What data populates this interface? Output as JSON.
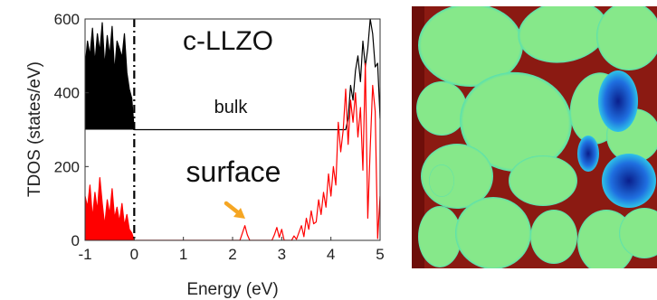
{
  "chart_data": {
    "type": "line",
    "xlabel": "Energy (eV)",
    "ylabel": "TDOS (states/eV)",
    "xlim": [
      -1,
      5
    ],
    "ylim": [
      0,
      600
    ],
    "x_ticks": [
      "-1",
      "0",
      "1",
      "2",
      "3",
      "4",
      "5"
    ],
    "y_ticks": [
      "0",
      "200",
      "400",
      "600"
    ],
    "fermi_level_x": 0,
    "annotations": {
      "material": "c-LLZO",
      "bulk_label": "bulk",
      "surface_label": "surface",
      "arrow_target_x": 2.25,
      "arrow_target_y": 40
    },
    "series": [
      {
        "name": "bulk",
        "color": "#000000",
        "baseline": 300,
        "x": [
          -1.0,
          -0.95,
          -0.9,
          -0.85,
          -0.8,
          -0.75,
          -0.7,
          -0.65,
          -0.6,
          -0.55,
          -0.5,
          -0.45,
          -0.4,
          -0.35,
          -0.3,
          -0.25,
          -0.2,
          -0.15,
          -0.1,
          -0.05,
          0.0,
          0.02,
          4.3,
          4.35,
          4.4,
          4.45,
          4.5,
          4.55,
          4.6,
          4.65,
          4.7,
          4.75,
          4.8,
          4.85,
          4.9,
          4.95,
          5.0
        ],
        "values": [
          470,
          540,
          500,
          575,
          480,
          560,
          510,
          590,
          470,
          555,
          500,
          580,
          455,
          540,
          520,
          495,
          560,
          455,
          410,
          385,
          300,
          300,
          300,
          330,
          420,
          380,
          460,
          500,
          430,
          540,
          470,
          520,
          600,
          560,
          470,
          480,
          330
        ]
      },
      {
        "name": "surface",
        "color": "#ff0000",
        "baseline": 0,
        "x": [
          -1.0,
          -0.95,
          -0.9,
          -0.85,
          -0.8,
          -0.75,
          -0.7,
          -0.65,
          -0.6,
          -0.55,
          -0.5,
          -0.45,
          -0.4,
          -0.35,
          -0.3,
          -0.25,
          -0.2,
          -0.15,
          -0.1,
          -0.05,
          0.0,
          0.05,
          2.15,
          2.2,
          2.25,
          2.3,
          2.35,
          2.8,
          2.85,
          2.9,
          2.95,
          3.0,
          3.05,
          3.2,
          3.25,
          3.3,
          3.4,
          3.45,
          3.5,
          3.55,
          3.6,
          3.65,
          3.7,
          3.75,
          3.8,
          3.85,
          3.9,
          3.95,
          4.0,
          4.05,
          4.1,
          4.15,
          4.2,
          4.25,
          4.3,
          4.35,
          4.4,
          4.45,
          4.5,
          4.55,
          4.6,
          4.65,
          4.7,
          4.75,
          4.8,
          4.85,
          4.9,
          4.95,
          5.0
        ],
        "values": [
          120,
          90,
          150,
          60,
          130,
          80,
          170,
          100,
          40,
          110,
          70,
          140,
          60,
          90,
          50,
          100,
          40,
          70,
          30,
          20,
          0,
          0,
          0,
          20,
          40,
          15,
          0,
          0,
          15,
          35,
          8,
          30,
          0,
          0,
          12,
          3,
          40,
          10,
          60,
          30,
          80,
          45,
          50,
          110,
          70,
          130,
          90,
          180,
          120,
          200,
          150,
          320,
          240,
          300,
          410,
          260,
          380,
          320,
          400,
          280,
          360,
          190,
          480,
          60,
          250,
          420,
          350,
          5,
          120
        ]
      }
    ]
  },
  "image_panel": {
    "background": "#8b1a12",
    "left_edge_color": "#6e0e0a",
    "grain_fill": "#86e88a",
    "grain_edge_outer": "#2a8ff0",
    "grain_edge_inner": "#1bd7e0",
    "deep_blue": "#0a1f8c"
  }
}
